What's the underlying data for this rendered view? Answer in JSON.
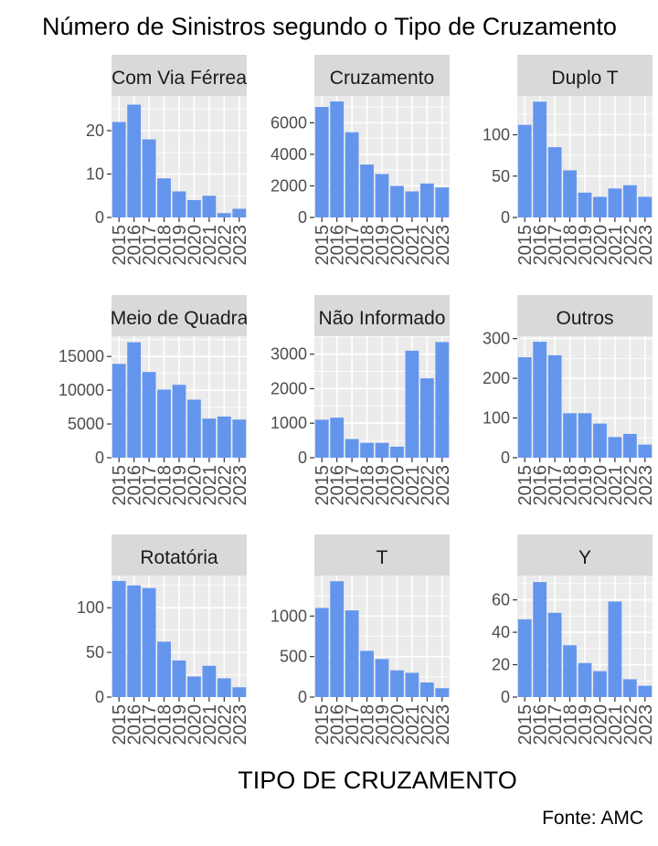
{
  "chart_data": {
    "type": "bar",
    "title": "Número de Sinistros segundo o Tipo de Cruzamento",
    "xlabel": "TIPO DE CRUZAMENTO",
    "ylabel": "",
    "caption": "Fonte: AMC",
    "bar_color": "#6495ED",
    "panel_bg": "#EBEBEB",
    "strip_bg": "#D9D9D9",
    "grid": true,
    "categories": [
      "2015",
      "2016",
      "2017",
      "2018",
      "2019",
      "2020",
      "2021",
      "2022",
      "2023"
    ],
    "panels": [
      {
        "name": "Com Via Férrea",
        "values": [
          22,
          26,
          18,
          9,
          6,
          4,
          5,
          1,
          2
        ],
        "ylim": [
          0,
          28
        ],
        "yticks": [
          0,
          10,
          20
        ]
      },
      {
        "name": "Cruzamento",
        "values": [
          7000,
          7350,
          5400,
          3350,
          2750,
          2000,
          1650,
          2150,
          1900
        ],
        "ylim": [
          0,
          7700
        ],
        "yticks": [
          0,
          2000,
          4000,
          6000
        ]
      },
      {
        "name": "Duplo T",
        "values": [
          112,
          140,
          85,
          57,
          30,
          25,
          35,
          39,
          25
        ],
        "ylim": [
          0,
          147
        ],
        "yticks": [
          0,
          50,
          100
        ]
      },
      {
        "name": "Meio de Quadra",
        "values": [
          13900,
          17100,
          12700,
          10100,
          10800,
          8600,
          5800,
          6100,
          5650
        ],
        "ylim": [
          0,
          18000
        ],
        "yticks": [
          0,
          5000,
          10000,
          15000
        ]
      },
      {
        "name": "Não Informado",
        "values": [
          1100,
          1160,
          540,
          430,
          430,
          320,
          3100,
          2300,
          3350
        ],
        "ylim": [
          0,
          3520
        ],
        "yticks": [
          0,
          1000,
          2000,
          3000
        ]
      },
      {
        "name": "Outros",
        "values": [
          253,
          292,
          258,
          112,
          112,
          86,
          52,
          60,
          33
        ],
        "ylim": [
          0,
          306
        ],
        "yticks": [
          0,
          100,
          200,
          300
        ]
      },
      {
        "name": "Rotatória",
        "values": [
          130,
          125,
          122,
          62,
          41,
          23,
          35,
          21,
          11
        ],
        "ylim": [
          0,
          136
        ],
        "yticks": [
          0,
          50,
          100
        ]
      },
      {
        "name": "T",
        "values": [
          1100,
          1430,
          1070,
          570,
          470,
          330,
          300,
          180,
          110
        ],
        "ylim": [
          0,
          1500
        ],
        "yticks": [
          0,
          500,
          1000
        ]
      },
      {
        "name": "Y",
        "values": [
          48,
          71,
          52,
          32,
          21,
          16,
          59,
          11,
          7
        ],
        "ylim": [
          0,
          75
        ],
        "yticks": [
          0,
          20,
          40,
          60
        ]
      }
    ]
  }
}
